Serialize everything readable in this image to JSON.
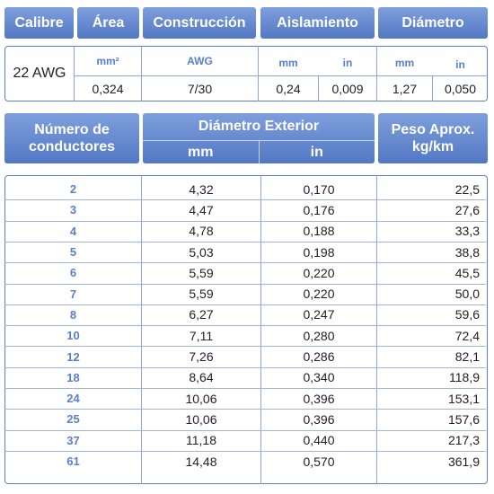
{
  "top_table": {
    "headers": {
      "calibre": "Calibre",
      "area": "Área",
      "construccion": "Construcción",
      "aislamiento": "Aislamiento",
      "diametro": "Diámetro"
    },
    "units": {
      "area": "mm²",
      "construccion": "AWG",
      "aislamiento_mm": "mm",
      "aislamiento_in": "in",
      "diametro_mm": "mm",
      "diametro_in": "in"
    },
    "row": {
      "calibre": "22 AWG",
      "area": "0,324",
      "construccion": "7/30",
      "aislamiento_mm": "0,24",
      "aislamiento_in": "0,009",
      "diametro_mm": "1,27",
      "diametro_in": "0,050"
    }
  },
  "bottom_table": {
    "headers": {
      "num_conductores": "Número de conductores",
      "diametro_exterior": "Diámetro Exterior",
      "diametro_mm": "mm",
      "diametro_in": "in",
      "peso": "Peso Aprox. kg/km"
    },
    "rows": [
      {
        "n": "2",
        "mm": "4,32",
        "in": "0,170",
        "peso": "22,5"
      },
      {
        "n": "3",
        "mm": "4,47",
        "in": "0,176",
        "peso": "27,6"
      },
      {
        "n": "4",
        "mm": "4,78",
        "in": "0,188",
        "peso": "33,3"
      },
      {
        "n": "5",
        "mm": "5,03",
        "in": "0,198",
        "peso": "38,8"
      },
      {
        "n": "6",
        "mm": "5,59",
        "in": "0,220",
        "peso": "45,5"
      },
      {
        "n": "7",
        "mm": "5,59",
        "in": "0,220",
        "peso": "50,0"
      },
      {
        "n": "8",
        "mm": "6,27",
        "in": "0,247",
        "peso": "59,6"
      },
      {
        "n": "10",
        "mm": "7,11",
        "in": "0,280",
        "peso": "72,4"
      },
      {
        "n": "12",
        "mm": "7,26",
        "in": "0,286",
        "peso": "82,1"
      },
      {
        "n": "18",
        "mm": "8,64",
        "in": "0,340",
        "peso": "118,9"
      },
      {
        "n": "24",
        "mm": "10,06",
        "in": "0,396",
        "peso": "153,1"
      },
      {
        "n": "25",
        "mm": "10,06",
        "in": "0,396",
        "peso": "157,6"
      },
      {
        "n": "37",
        "mm": "11,18",
        "in": "0,440",
        "peso": "217,3"
      },
      {
        "n": "61",
        "mm": "14,48",
        "in": "0,570",
        "peso": "361,9"
      }
    ]
  }
}
